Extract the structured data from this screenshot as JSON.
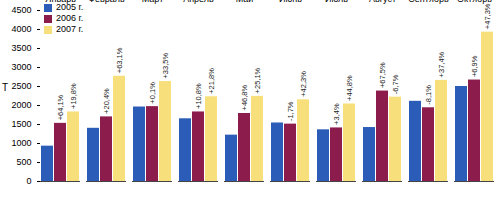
{
  "chart_data": {
    "type": "bar",
    "y_label": "Т",
    "categories": [
      "Январь",
      "Февраль",
      "Март",
      "Апрель",
      "Май",
      "Июнь",
      "Июль",
      "Август",
      "Сентябрь",
      "Октябрь"
    ],
    "series": [
      {
        "name": "2005 г.",
        "color": "#2a5cb8",
        "values": [
          930,
          1400,
          1960,
          1650,
          1220,
          1540,
          1360,
          1420,
          2110,
          2500
        ]
      },
      {
        "name": "2006 г.",
        "color": "#8c1c4c",
        "values": [
          1530,
          1700,
          1970,
          1830,
          1790,
          1510,
          1410,
          2380,
          1940,
          2670
        ],
        "annotations": [
          "+64,1%",
          "+20,4%",
          "+0,1%",
          "+10,8%",
          "+46,8%",
          "-1,7%",
          "+3,4%",
          "+67,5%",
          "-8,1%",
          "+6,9%"
        ]
      },
      {
        "name": "2007 г.",
        "color": "#f7e07c",
        "values": [
          1830,
          2770,
          2630,
          2230,
          2240,
          2150,
          2040,
          2220,
          2660,
          3930
        ],
        "annotations": [
          "+19,8%",
          "+63,1%",
          "+33,5%",
          "+21,8%",
          "+25,1%",
          "+42,3%",
          "+44,8%",
          "-6,7%",
          "+37,4%",
          "+47,3%"
        ]
      }
    ],
    "ylim": [
      0,
      4500
    ],
    "yticks": [
      0,
      500,
      1000,
      1500,
      2000,
      2500,
      3000,
      3500,
      4000,
      4500
    ],
    "legend": "top-left",
    "grid": false
  }
}
